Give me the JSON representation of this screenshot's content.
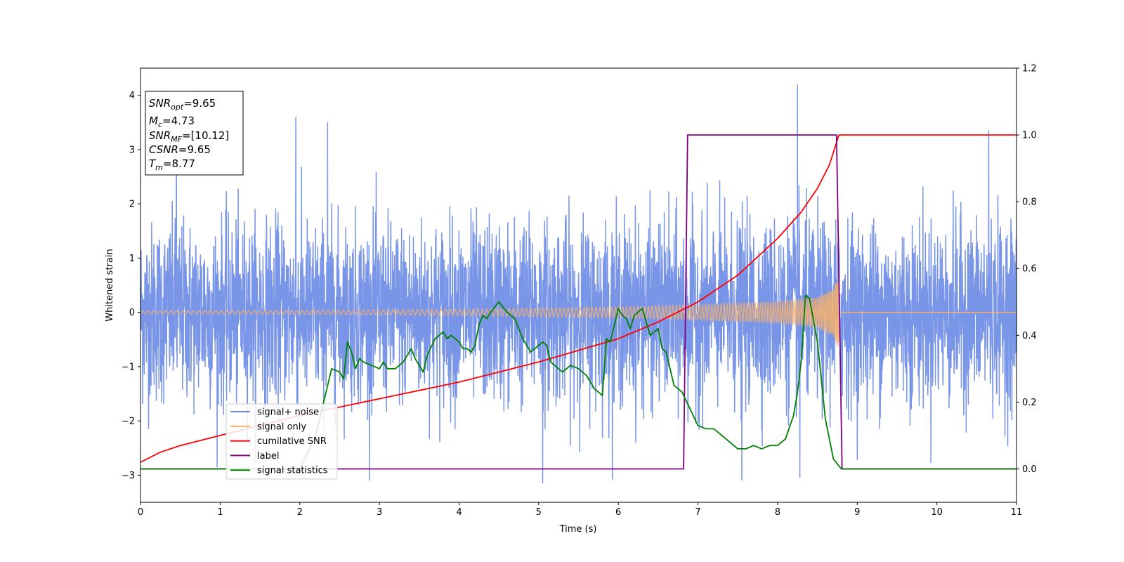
{
  "chart_data": {
    "type": "line",
    "xlabel": "Time (s)",
    "ylabel_left": "Whitened strain",
    "ylabel_right": "",
    "xlim": [
      0,
      11
    ],
    "ylim_left": [
      -3.5,
      4.5
    ],
    "ylim_right": [
      -0.1,
      1.2
    ],
    "x_ticks": [
      "0",
      "1",
      "2",
      "3",
      "4",
      "5",
      "6",
      "7",
      "8",
      "9",
      "10",
      "11"
    ],
    "y_left_ticks": [
      "−3",
      "−2",
      "−1",
      "0",
      "1",
      "2",
      "3",
      "4"
    ],
    "y_right_ticks": [
      "0.0",
      "0.2",
      "0.4",
      "0.6",
      "0.8",
      "1.0",
      "1.2"
    ],
    "grid": false,
    "legend_position": "lower-left",
    "series": [
      {
        "name": "signal+ noise",
        "color": "#6a8ae6",
        "axis": "left",
        "description": "whitened strain noise around zero, roughly within ±2, with spikes up to about 4.2 near t=8.25",
        "approx_range": [
          -3.2,
          4.2
        ]
      },
      {
        "name": "signal only",
        "color": "#f4b06e",
        "axis": "left",
        "description": "chirp whose amplitude grows from about 0.03 at t=0 to about 0.7 at t=8.77, then 0",
        "envelope_x": [
          0,
          2,
          4,
          6,
          7,
          8,
          8.5,
          8.7,
          8.77,
          8.78,
          11
        ],
        "envelope_y": [
          0.03,
          0.04,
          0.06,
          0.1,
          0.14,
          0.2,
          0.28,
          0.45,
          0.7,
          0,
          0
        ]
      },
      {
        "name": "cumilative SNR",
        "color": "#ff0000",
        "axis": "right",
        "x": [
          0,
          0.25,
          0.5,
          1,
          1.5,
          2,
          3,
          4,
          5,
          6,
          6.5,
          7,
          7.5,
          8,
          8.3,
          8.5,
          8.65,
          8.77,
          8.78,
          11
        ],
        "y": [
          0.02,
          0.05,
          0.07,
          0.1,
          0.13,
          0.16,
          0.21,
          0.26,
          0.32,
          0.39,
          0.44,
          0.5,
          0.58,
          0.69,
          0.77,
          0.84,
          0.91,
          1.0,
          1.0,
          1.0
        ]
      },
      {
        "name": "label",
        "color": "#800080",
        "axis": "right",
        "x": [
          0,
          6.82,
          6.87,
          8.74,
          8.81,
          11
        ],
        "y": [
          0,
          0,
          1,
          1,
          0,
          0
        ]
      },
      {
        "name": "signal statistics",
        "color": "#008000",
        "axis": "right",
        "x": [
          0,
          2.0,
          2.2,
          2.3,
          2.4,
          2.5,
          2.55,
          2.6,
          2.65,
          2.7,
          2.75,
          2.8,
          2.9,
          3.0,
          3.05,
          3.1,
          3.2,
          3.25,
          3.3,
          3.4,
          3.45,
          3.5,
          3.55,
          3.6,
          3.7,
          3.8,
          3.85,
          3.9,
          4.0,
          4.05,
          4.1,
          4.15,
          4.2,
          4.25,
          4.3,
          4.35,
          4.4,
          4.5,
          4.6,
          4.7,
          4.8,
          4.9,
          5.0,
          5.05,
          5.1,
          5.15,
          5.2,
          5.3,
          5.4,
          5.5,
          5.6,
          5.7,
          5.8,
          5.85,
          5.9,
          6.0,
          6.05,
          6.1,
          6.15,
          6.2,
          6.3,
          6.4,
          6.5,
          6.55,
          6.6,
          6.7,
          6.8,
          6.9,
          7.0,
          7.1,
          7.2,
          7.3,
          7.4,
          7.5,
          7.6,
          7.7,
          7.8,
          7.9,
          8.0,
          8.1,
          8.2,
          8.25,
          8.3,
          8.35,
          8.4,
          8.5,
          8.6,
          8.7,
          8.8,
          9.0,
          11
        ],
        "y": [
          0.0,
          0.0,
          0.1,
          0.2,
          0.3,
          0.29,
          0.27,
          0.38,
          0.35,
          0.3,
          0.33,
          0.32,
          0.31,
          0.3,
          0.32,
          0.3,
          0.3,
          0.31,
          0.32,
          0.36,
          0.33,
          0.31,
          0.29,
          0.34,
          0.39,
          0.41,
          0.39,
          0.4,
          0.38,
          0.36,
          0.36,
          0.35,
          0.37,
          0.43,
          0.46,
          0.45,
          0.47,
          0.5,
          0.47,
          0.45,
          0.39,
          0.35,
          0.37,
          0.38,
          0.37,
          0.32,
          0.31,
          0.29,
          0.31,
          0.3,
          0.28,
          0.24,
          0.22,
          0.39,
          0.38,
          0.48,
          0.46,
          0.45,
          0.42,
          0.46,
          0.48,
          0.4,
          0.42,
          0.36,
          0.35,
          0.25,
          0.23,
          0.18,
          0.13,
          0.12,
          0.12,
          0.1,
          0.08,
          0.06,
          0.06,
          0.07,
          0.06,
          0.07,
          0.07,
          0.09,
          0.16,
          0.23,
          0.33,
          0.52,
          0.51,
          0.38,
          0.15,
          0.03,
          0.0,
          0.0,
          0.0
        ]
      }
    ],
    "annotation_box": {
      "lines": [
        {
          "main": "SNR",
          "sub": "opt",
          "value": "=9.65"
        },
        {
          "main": "M",
          "sub": "c",
          "value": "=4.73"
        },
        {
          "main": "SNR",
          "sub": "MF",
          "value": "=[10.12]"
        },
        {
          "main": "CSNR",
          "sub": "",
          "value": "=9.65"
        },
        {
          "main": "T",
          "sub": "m",
          "value": "=8.77"
        }
      ]
    }
  }
}
